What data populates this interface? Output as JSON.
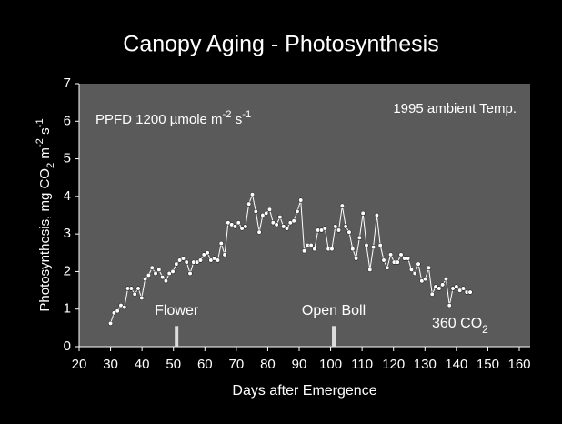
{
  "chart_data": {
    "type": "line",
    "title": "Canopy Aging - Photosynthesis",
    "xlabel": "Days after Emergence",
    "ylabel": [
      "Photosynthesis, mg CO",
      "2",
      " m",
      "-2",
      " s",
      "-1"
    ],
    "note_left": [
      "PPFD 1200 µmole m",
      "-2",
      " s",
      "-1"
    ],
    "note_right": "1995 ambient Temp.",
    "series_label": [
      "360 CO",
      "2"
    ],
    "annotations": [
      {
        "text": "Flower",
        "x": 51
      },
      {
        "text": "Open Boll",
        "x": 101
      }
    ],
    "xlim": [
      20,
      160
    ],
    "xticks": [
      20,
      30,
      40,
      50,
      60,
      70,
      80,
      90,
      100,
      110,
      120,
      130,
      140,
      150,
      160
    ],
    "ylim": [
      0,
      7
    ],
    "yticks": [
      0,
      1,
      2,
      3,
      4,
      5,
      6,
      7
    ],
    "color": "#ffffff",
    "background": "#5a5a5a",
    "x": [
      30,
      31.1,
      32.2,
      33.3,
      34.4,
      35.5,
      36.6,
      37.7,
      38.8,
      39.9,
      41,
      42.1,
      43.2,
      44.3,
      45.4,
      46.5,
      47.6,
      48.7,
      49.8,
      50.9,
      52,
      53.1,
      54.2,
      55.3,
      56.4,
      57.5,
      58.6,
      59.7,
      60.8,
      61.9,
      63,
      64.1,
      65.2,
      66.3,
      67.4,
      68.5,
      69.6,
      70.7,
      71.8,
      72.9,
      74,
      75.1,
      76.2,
      77.3,
      78.4,
      79.5,
      80.6,
      81.7,
      82.8,
      83.9,
      85,
      86.1,
      87.2,
      88.3,
      89.4,
      90.5,
      91.6,
      92.7,
      93.8,
      94.9,
      96,
      97.1,
      98.2,
      99.3,
      100.4,
      101.5,
      102.6,
      103.7,
      104.8,
      105.9,
      107,
      108.1,
      109.2,
      110.3,
      111.4,
      112.5,
      113.6,
      114.7,
      115.8,
      116.9,
      118,
      119.1,
      120.2,
      121.3,
      122.4,
      123.5,
      124.6,
      125.7,
      126.8,
      127.9,
      129,
      130.1,
      131.2,
      132.3,
      133.4,
      134.5,
      135.6,
      136.7,
      137.8,
      138.9,
      140,
      141.1,
      142.2,
      143.3,
      144.4
    ],
    "values": [
      0.62,
      0.9,
      0.95,
      1.1,
      1.05,
      1.55,
      1.55,
      1.4,
      1.55,
      1.3,
      1.8,
      1.9,
      2.1,
      1.95,
      2.05,
      1.85,
      1.75,
      1.95,
      2.0,
      2.2,
      2.3,
      2.35,
      2.25,
      1.95,
      2.25,
      2.25,
      2.3,
      2.45,
      2.5,
      2.3,
      2.35,
      2.3,
      2.75,
      2.45,
      3.3,
      3.25,
      3.2,
      3.3,
      3.15,
      3.2,
      3.8,
      4.05,
      3.6,
      3.05,
      3.5,
      3.55,
      3.65,
      3.3,
      3.25,
      3.45,
      3.2,
      3.15,
      3.3,
      3.35,
      3.6,
      3.9,
      2.55,
      2.7,
      2.7,
      2.6,
      3.1,
      3.1,
      3.15,
      2.6,
      2.6,
      3.2,
      3.1,
      3.75,
      3.2,
      3.05,
      2.6,
      2.35,
      2.9,
      3.55,
      2.7,
      2.05,
      2.65,
      3.5,
      2.7,
      2.3,
      2.1,
      2.45,
      2.25,
      2.25,
      2.45,
      2.35,
      2.35,
      2.05,
      1.95,
      2.2,
      1.75,
      1.8,
      2.1,
      1.4,
      1.6,
      1.55,
      1.65,
      1.8,
      1.1,
      1.55,
      1.6,
      1.5,
      1.55,
      1.45,
      1.45
    ]
  }
}
